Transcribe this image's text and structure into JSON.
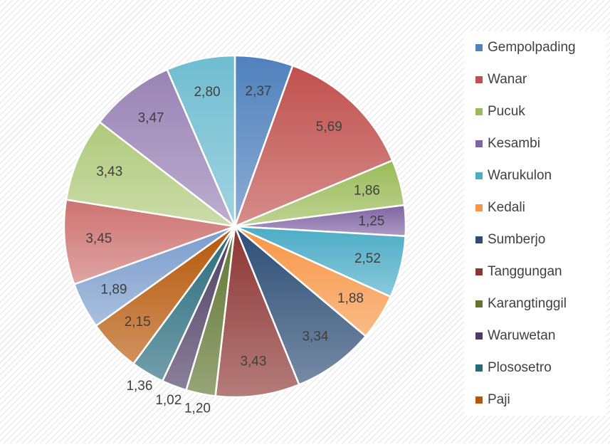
{
  "chart_data": {
    "type": "pie",
    "categories": [
      "Gempolpading",
      "Wanar",
      "Pucuk",
      "Kesambi",
      "Warukulon",
      "Kedali",
      "Sumberjo",
      "Tanggungan",
      "Karangtinggil",
      "Waruwetan",
      "Plososetro",
      "Paji",
      null,
      null,
      null,
      null,
      null
    ],
    "values": [
      2.37,
      5.69,
      1.86,
      1.25,
      2.52,
      1.88,
      3.34,
      3.43,
      1.2,
      1.02,
      1.36,
      2.15,
      1.89,
      3.45,
      3.43,
      3.47,
      2.8
    ],
    "value_labels": [
      "2,37",
      "5,69",
      "1,86",
      "1,25",
      "2,52",
      "1,88",
      "3,34",
      "3,43",
      "1,20",
      "1,02",
      "1,36",
      "2,15",
      "1,89",
      "3,45",
      "3,43",
      "3,47",
      "2,80"
    ],
    "colors": [
      "#4f81bd",
      "#c0504d",
      "#9bbb59",
      "#8064a2",
      "#4bacc6",
      "#f79646",
      "#2c4d75",
      "#8c3533",
      "#5f7530",
      "#4d3b62",
      "#276a7c",
      "#b65708",
      "#7a9ccc",
      "#cd7371",
      "#afc97a",
      "#9983b5",
      "#6fbdd1"
    ],
    "legend": "right"
  }
}
